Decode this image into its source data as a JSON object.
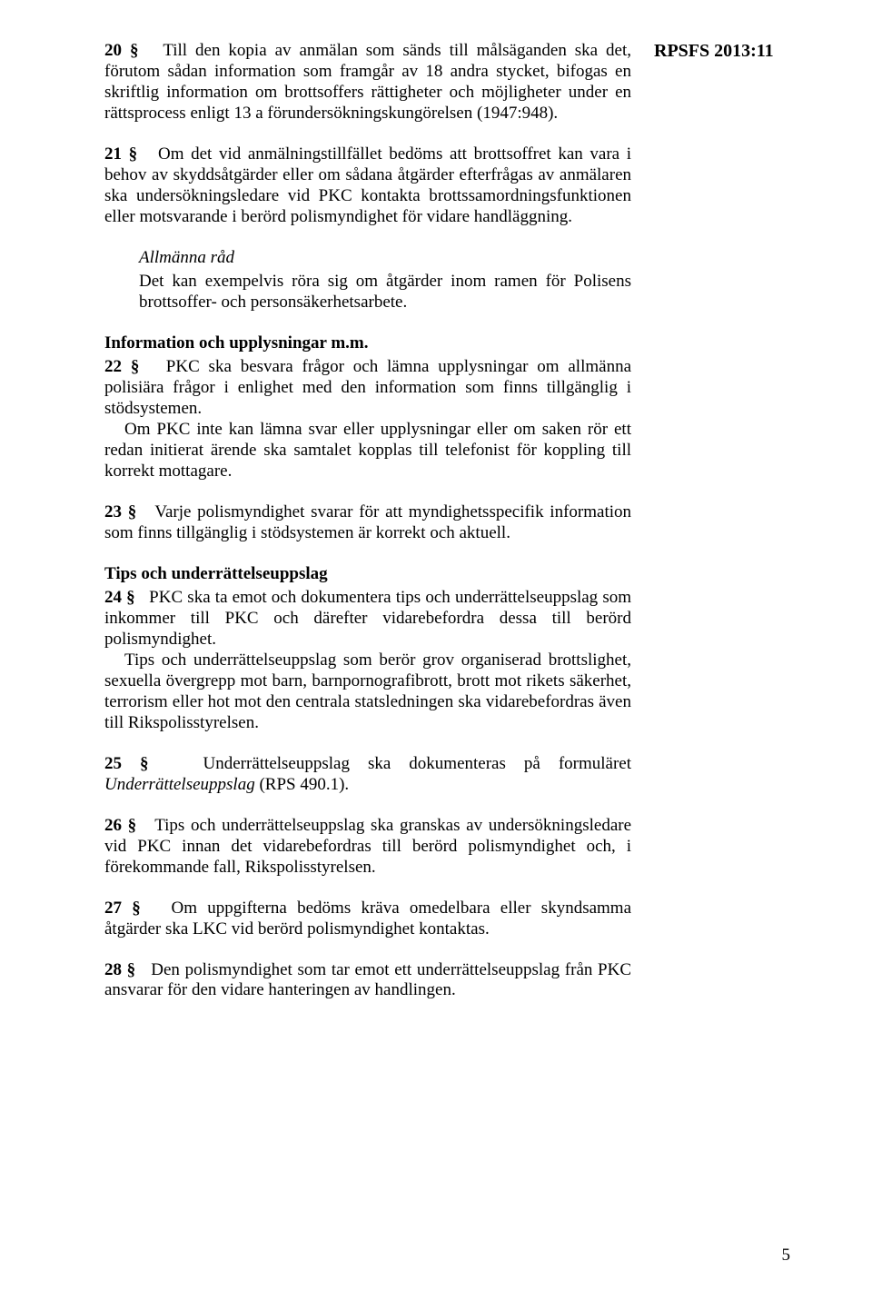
{
  "side_label": "RPSFS 2013:11",
  "p20": {
    "num": "20 §",
    "text": "Till den kopia av anmälan som sänds till målsäganden ska det, förutom sådan information som framgår av 18 andra stycket, bifogas en skriftlig information om brottsoffers rättigheter och möjligheter under en rättsprocess enligt 13 a förundersökningskungörelsen (1947:948)."
  },
  "p21": {
    "num": "21 §",
    "text": "Om det vid anmälningstillfället bedöms att brottsoffret kan vara i behov av skyddsåtgärder eller om sådana åtgärder efterfrågas av anmälaren ska undersökningsledare vid PKC kontakta brottssamordningsfunktionen eller motsvarande i berörd polismyndighet för vidare handläggning."
  },
  "advice": {
    "head": "Allmänna råd",
    "text": "Det kan exempelvis röra sig om åtgärder inom ramen för Polisens brottsoffer- och personsäkerhetsarbete."
  },
  "info_heading": "Information och upplysningar m.m.",
  "p22": {
    "num": "22 §",
    "text1": "PKC ska besvara frågor och lämna upplysningar om allmänna polisiära frågor i enlighet med den information som finns tillgänglig i stödsystemen.",
    "text2": "Om PKC inte kan lämna svar eller upplysningar eller om saken rör ett redan initierat ärende ska samtalet kopplas till telefonist för koppling till korrekt mottagare."
  },
  "p23": {
    "num": "23 §",
    "text": "Varje polismyndighet svarar för att myndighetsspecifik information som finns tillgänglig i stödsystemen är korrekt och aktuell."
  },
  "tips_heading": "Tips och underrättelseuppslag",
  "p24": {
    "num": "24 §",
    "text1": "PKC ska ta emot och dokumentera tips och underrättelseuppslag som inkommer till PKC och därefter vidarebefordra dessa till berörd polismyndighet.",
    "text2": "Tips och underrättelseuppslag som berör grov organiserad brottslighet, sexuella övergrepp mot barn, barnpornografibrott, brott mot rikets säkerhet, terrorism eller hot mot den centrala statsledningen ska vidarebefordras även till Rikspolisstyrelsen."
  },
  "p25": {
    "num": "25 §",
    "text_before": "Underrättelseuppslag ska dokumenteras på formuläret ",
    "italic": "Underrättelseuppslag",
    "text_after": " (RPS 490.1)."
  },
  "p26": {
    "num": "26 §",
    "text": "Tips och underrättelseuppslag ska granskas av undersökningsledare vid PKC innan det vidarebefordras till berörd polismyndighet och, i förekommande fall, Rikspolisstyrelsen."
  },
  "p27": {
    "num": "27 §",
    "text": "Om uppgifterna bedöms kräva omedelbara eller skyndsamma åtgärder ska LKC vid berörd polismyndighet kontaktas."
  },
  "p28": {
    "num": "28 §",
    "text": "Den polismyndighet som tar emot ett underrättelseuppslag från PKC ansvarar för den vidare hanteringen av handlingen."
  },
  "page_number": "5"
}
